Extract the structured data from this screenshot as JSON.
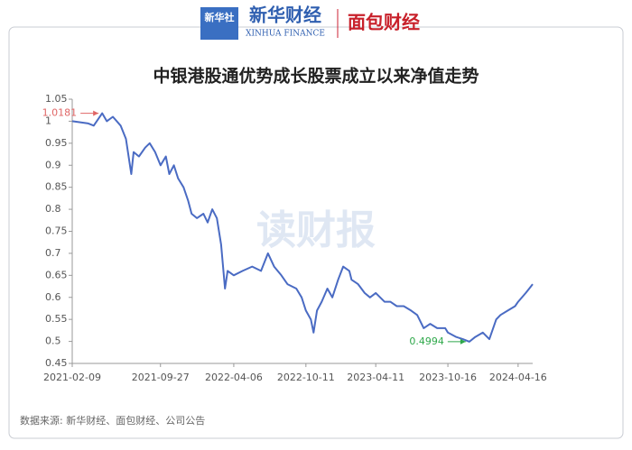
{
  "header": {
    "logo_left": "新华社",
    "logo_main": "新华财经",
    "logo_main_en": "XINHUA FINANCE",
    "logo_right": "面包财经"
  },
  "chart_data": {
    "type": "line",
    "title": "中银港股通优势成长股票成立以来净值走势",
    "color": "#4a6bc3",
    "x": [
      "2021-02-09",
      "2021-03-23",
      "2021-04-06",
      "2021-04-28",
      "2021-05-10",
      "2021-05-26",
      "2021-06-15",
      "2021-06-29",
      "2021-07-13",
      "2021-07-19",
      "2021-08-02",
      "2021-08-18",
      "2021-08-30",
      "2021-09-13",
      "2021-09-27",
      "2021-10-11",
      "2021-10-20",
      "2021-11-01",
      "2021-11-12",
      "2021-11-26",
      "2021-12-08",
      "2021-12-17",
      "2021-12-31",
      "2022-01-17",
      "2022-01-28",
      "2022-02-09",
      "2022-02-21",
      "2022-03-04",
      "2022-03-14",
      "2022-03-21",
      "2022-04-06",
      "2022-04-29",
      "2022-05-24",
      "2022-06-16",
      "2022-07-04",
      "2022-07-20",
      "2022-08-08",
      "2022-08-24",
      "2022-09-16",
      "2022-09-30",
      "2022-10-11",
      "2022-10-24",
      "2022-10-31",
      "2022-11-09",
      "2022-11-21",
      "2022-12-06",
      "2022-12-19",
      "2023-01-03",
      "2023-01-16",
      "2023-02-01",
      "2023-02-07",
      "2023-02-24",
      "2023-03-13",
      "2023-03-27",
      "2023-04-11",
      "2023-05-04",
      "2023-05-19",
      "2023-06-05",
      "2023-06-23",
      "2023-07-12",
      "2023-07-28",
      "2023-08-14",
      "2023-08-31",
      "2023-09-18",
      "2023-10-09",
      "2023-10-16",
      "2023-11-07",
      "2023-11-24",
      "2023-12-11",
      "2023-12-26",
      "2024-01-15",
      "2024-02-01",
      "2024-02-19",
      "2024-03-01",
      "2024-03-20",
      "2024-04-08",
      "2024-04-16",
      "2024-05-06",
      "2024-05-15",
      "2024-05-24"
    ],
    "values": [
      1.0,
      0.995,
      0.99,
      1.0181,
      1.0,
      1.01,
      0.99,
      0.96,
      0.88,
      0.93,
      0.92,
      0.94,
      0.95,
      0.93,
      0.9,
      0.92,
      0.88,
      0.9,
      0.87,
      0.85,
      0.82,
      0.79,
      0.78,
      0.79,
      0.77,
      0.8,
      0.78,
      0.72,
      0.62,
      0.66,
      0.65,
      0.66,
      0.67,
      0.66,
      0.7,
      0.67,
      0.65,
      0.63,
      0.62,
      0.6,
      0.57,
      0.55,
      0.52,
      0.57,
      0.59,
      0.62,
      0.6,
      0.64,
      0.67,
      0.66,
      0.64,
      0.63,
      0.61,
      0.6,
      0.61,
      0.59,
      0.59,
      0.58,
      0.58,
      0.57,
      0.56,
      0.53,
      0.54,
      0.53,
      0.53,
      0.52,
      0.51,
      0.505,
      0.4994,
      0.51,
      0.52,
      0.505,
      0.55,
      0.56,
      0.57,
      0.58,
      0.59,
      0.61,
      0.62,
      0.63
    ],
    "xlim": [
      "2021-02-09",
      "2024-05-24"
    ],
    "xticks": [
      "2021-02-09",
      "2021-09-27",
      "2022-04-06",
      "2022-10-11",
      "2023-04-11",
      "2023-10-16",
      "2024-04-16"
    ],
    "ylim": [
      0.45,
      1.05
    ],
    "yticks": [
      0.45,
      0.5,
      0.55,
      0.6,
      0.65,
      0.7,
      0.75,
      0.8,
      0.85,
      0.9,
      0.95,
      1,
      1.05
    ],
    "annotations": [
      {
        "label": "1.0181",
        "x": "2021-04-28",
        "y": 1.0181,
        "color": "#e06666"
      },
      {
        "label": "0.4994",
        "x": "2023-12-11",
        "y": 0.4994,
        "color": "#2ea84a"
      }
    ],
    "watermark": "读财报",
    "source": "数据来源: 新华财经、面包财经、公司公告"
  }
}
